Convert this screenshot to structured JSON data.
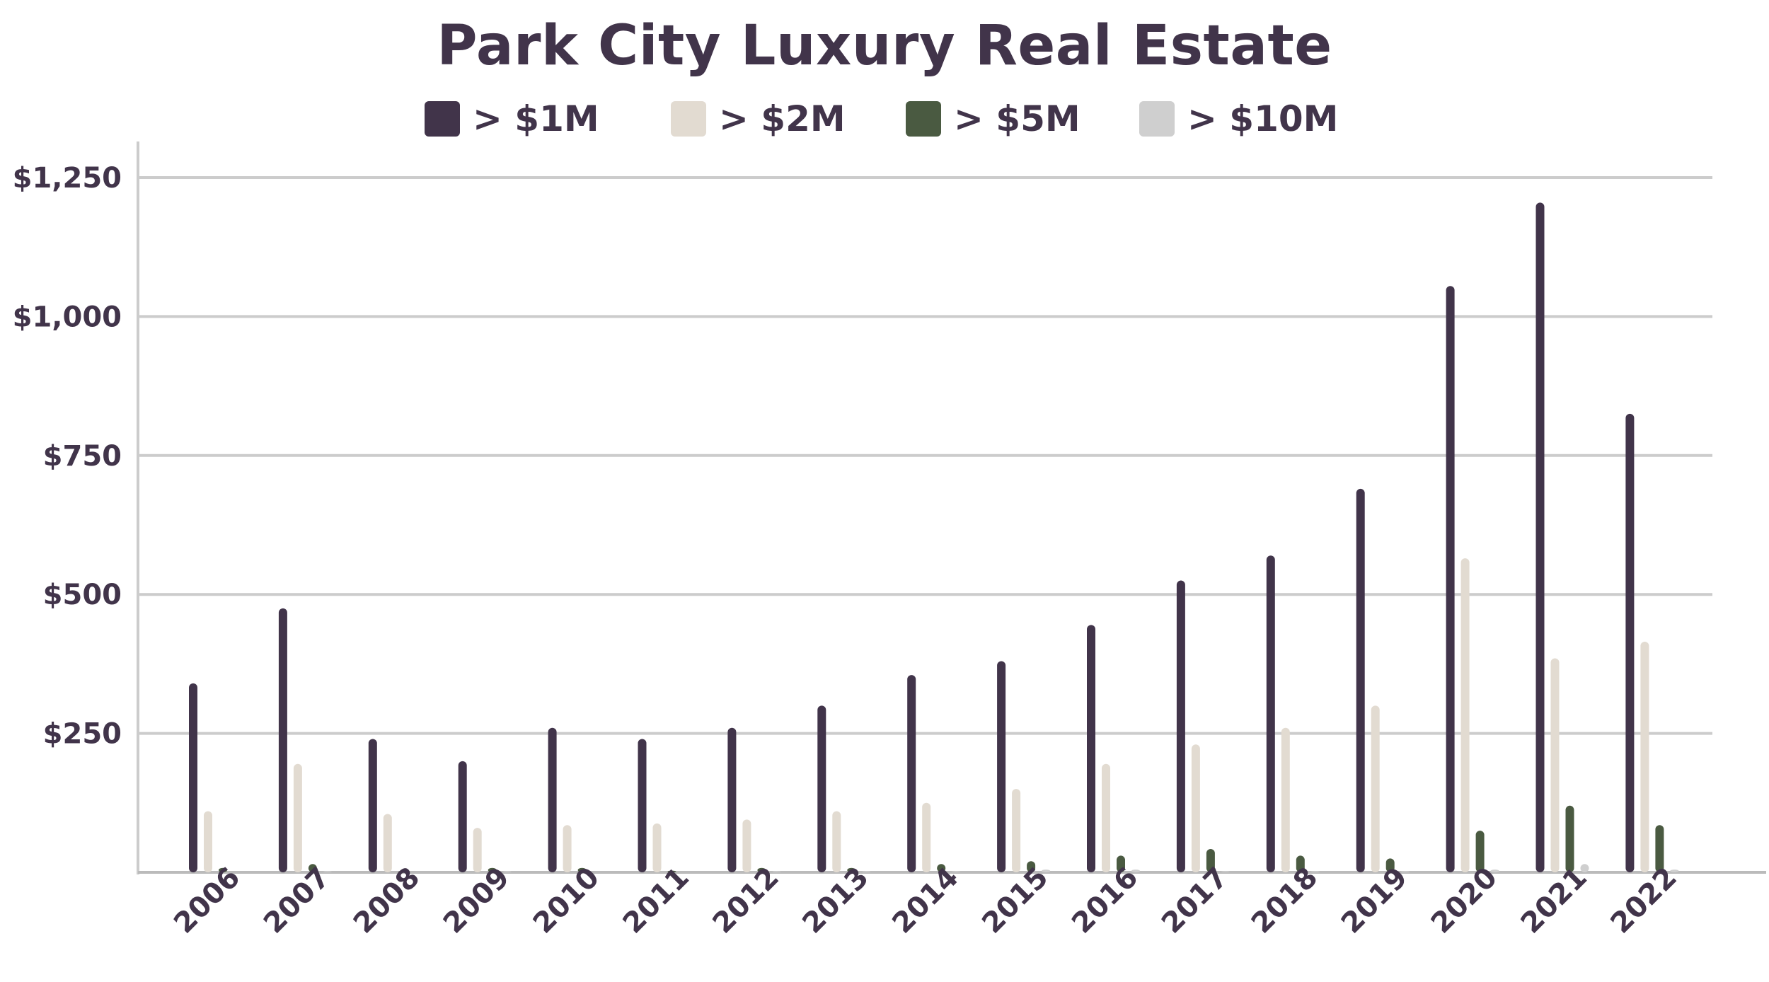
{
  "chart_data": {
    "type": "bar",
    "title": "Park City Luxury Real Estate",
    "xlabel": "",
    "ylabel": "",
    "categories": [
      "2006",
      "2007",
      "2008",
      "2009",
      "2010",
      "2011",
      "2012",
      "2013",
      "2014",
      "2015",
      "2016",
      "2017",
      "2018",
      "2019",
      "2020",
      "2021",
      "2022"
    ],
    "series": [
      {
        "name": "> $1M",
        "color": "#41344a",
        "values": [
          340,
          475,
          240,
          200,
          260,
          240,
          260,
          300,
          355,
          380,
          445,
          525,
          570,
          690,
          1055,
          1205,
          825
        ]
      },
      {
        "name": "> $2M",
        "color": "#e2dbd1",
        "values": [
          110,
          195,
          105,
          80,
          85,
          88,
          95,
          110,
          125,
          150,
          195,
          230,
          260,
          300,
          565,
          385,
          415
        ]
      },
      {
        "name": "> $5M",
        "color": "#4a5a41",
        "values": [
          8,
          15,
          2,
          8,
          8,
          3,
          8,
          8,
          15,
          20,
          30,
          42,
          30,
          25,
          75,
          120,
          85
        ]
      },
      {
        "name": "> $10M",
        "color": "#cfcfcf",
        "values": [
          0,
          2,
          0,
          2,
          0,
          0,
          2,
          2,
          2,
          5,
          5,
          2,
          2,
          2,
          5,
          15,
          5
        ]
      }
    ],
    "y_tick_labels": [
      "$250",
      "$500",
      "$750",
      "$1,000",
      "$1,250"
    ],
    "y_tick_values": [
      250,
      500,
      750,
      1000,
      1250
    ],
    "ylim": [
      0,
      1300
    ],
    "grid": true,
    "legend_position": "top"
  }
}
